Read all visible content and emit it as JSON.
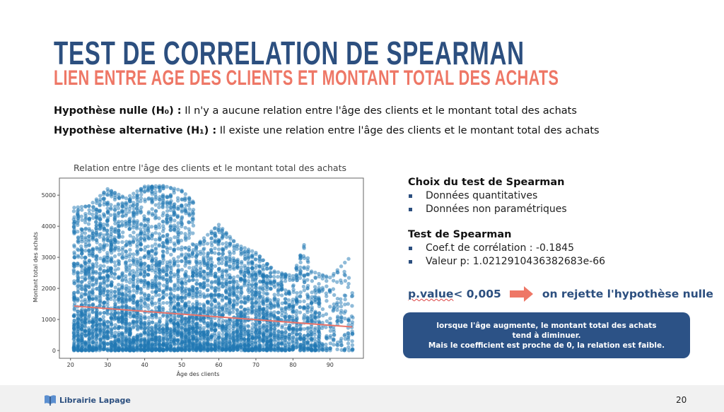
{
  "title": "TEST DE CORRELATION DE SPEARMAN",
  "subtitle": "LIEN ENTRE AGE DES CLIENTS ET MONTANT TOTAL DES ACHATS",
  "hypotheses": [
    {
      "label": "Hypothèse nulle (H₀) :",
      "text": " Il n'y a aucune relation entre l'âge des clients et le montant total des achats"
    },
    {
      "label": "Hypothèse alternative (H₁) :",
      "text": " Il existe une relation entre l'âge des clients et le montant total des achats"
    }
  ],
  "choice": {
    "heading": "Choix du test de Spearman",
    "items": [
      "Données quantitatives",
      "Données non paramétriques"
    ]
  },
  "test": {
    "heading": "Test de Spearman",
    "items": [
      "Coef.t de corrélation : -0.1845",
      "Valeur p: 1.0212910436382683e-66"
    ]
  },
  "conclusion": {
    "condition_u": "p.value",
    "condition": " < 0,005",
    "result": "on rejette l'hypothèse nulle"
  },
  "box": {
    "lines": [
      "lorsque l'âge augmente, le montant total des achats",
      "tend à diminuer.",
      "Mais le coefficient est proche de 0, la relation est faible."
    ]
  },
  "footer": {
    "brand": "Librairie Lapage",
    "page": "20"
  },
  "colors": {
    "primary": "#2c4f7f",
    "accent": "#ee7766",
    "points": "#1f77b4",
    "line": "#e8736a"
  },
  "chart_data": {
    "type": "scatter",
    "title": "Relation entre l'âge des clients et le montant total des achats",
    "xlabel": "Âge des clients",
    "ylabel": "Montant total des achats",
    "xlim": [
      17,
      99
    ],
    "ylim": [
      -250,
      5550
    ],
    "xticks": [
      20,
      30,
      40,
      50,
      60,
      70,
      80,
      90
    ],
    "yticks": [
      0,
      1000,
      2000,
      3000,
      4000,
      5000
    ],
    "upper_envelope": {
      "age": [
        21,
        25,
        30,
        35,
        40,
        45,
        50,
        53,
        54,
        60,
        65,
        70,
        75,
        80,
        83,
        85,
        90,
        95,
        96
      ],
      "max_amount": [
        4600,
        4650,
        5200,
        4900,
        5280,
        5300,
        5150,
        4800,
        3400,
        4050,
        3400,
        3150,
        2550,
        2400,
        3400,
        2550,
        2350,
        2950,
        1850
      ]
    },
    "regression_line": {
      "x": [
        21,
        96
      ],
      "y": [
        1430,
        760
      ]
    }
  }
}
